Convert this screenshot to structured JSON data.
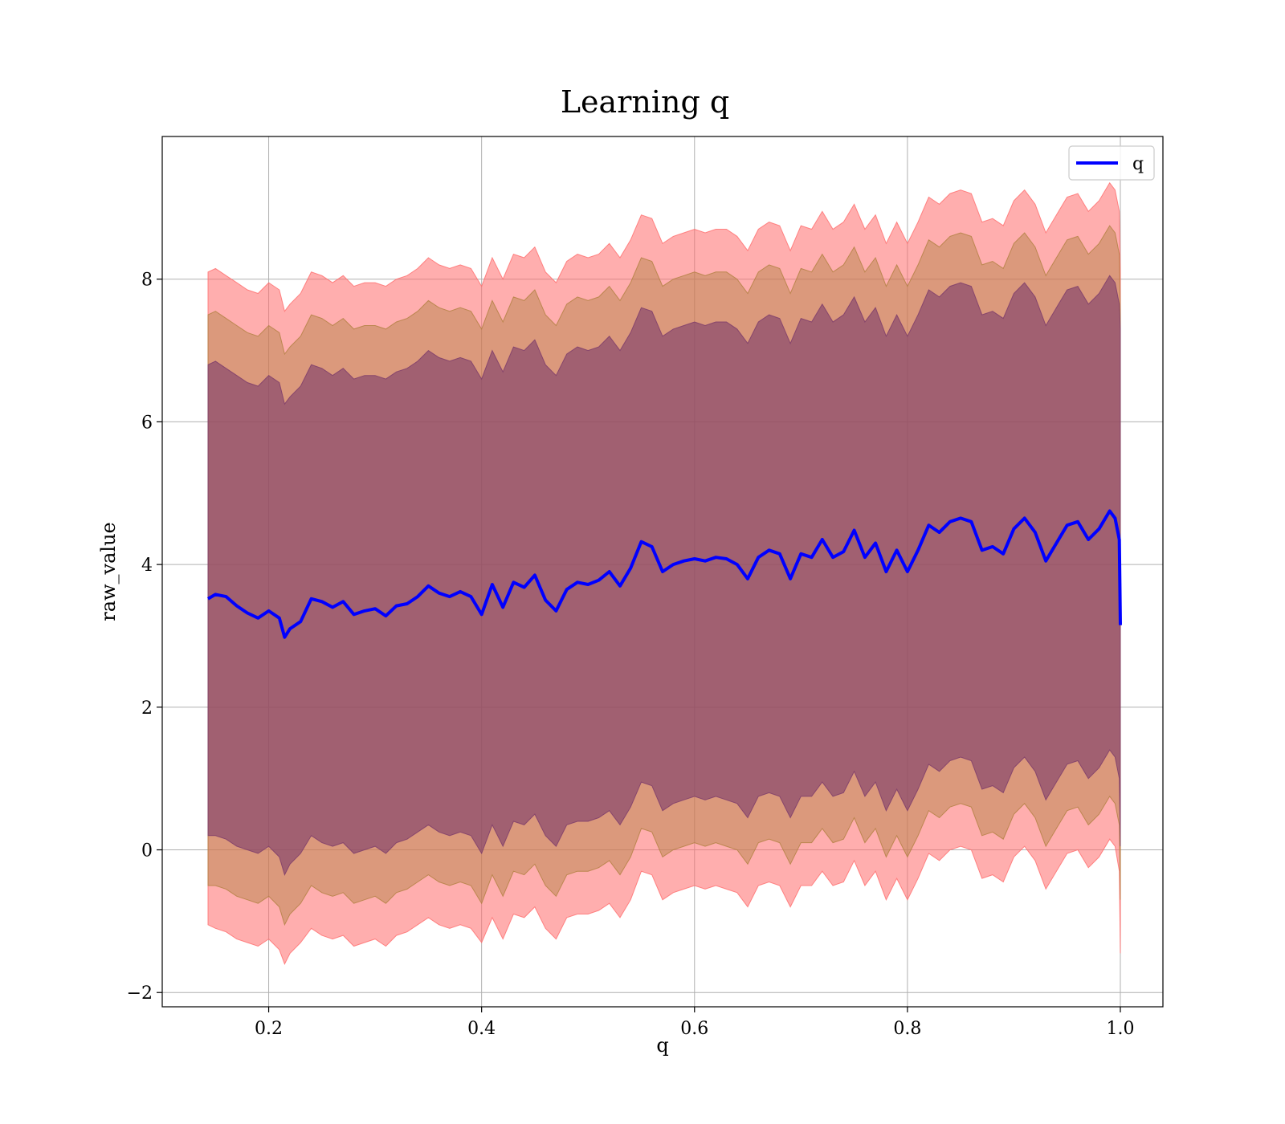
{
  "chart_data": {
    "type": "line",
    "title": "Learning q",
    "xlabel": "q",
    "ylabel": "raw_value",
    "xlim": [
      0.1,
      1.04
    ],
    "ylim": [
      -2.2,
      10.0
    ],
    "xticks": [
      0.2,
      0.4,
      0.6,
      0.8,
      1.0
    ],
    "xtick_labels": [
      "0.2",
      "0.4",
      "0.6",
      "0.8",
      "1.0"
    ],
    "yticks": [
      -2,
      0,
      2,
      4,
      6,
      8
    ],
    "ytick_labels": [
      "−2",
      "0",
      "2",
      "4",
      "6",
      "8"
    ],
    "grid": true,
    "legend": {
      "position": "top-right",
      "entries": [
        "q"
      ]
    },
    "series": [
      {
        "name": "q",
        "color": "#0000ff",
        "x": [
          0.143,
          0.15,
          0.16,
          0.17,
          0.18,
          0.19,
          0.2,
          0.21,
          0.215,
          0.22,
          0.23,
          0.24,
          0.25,
          0.26,
          0.27,
          0.28,
          0.29,
          0.3,
          0.31,
          0.32,
          0.33,
          0.34,
          0.35,
          0.36,
          0.37,
          0.38,
          0.39,
          0.4,
          0.41,
          0.42,
          0.43,
          0.44,
          0.45,
          0.46,
          0.47,
          0.48,
          0.49,
          0.5,
          0.51,
          0.52,
          0.53,
          0.54,
          0.55,
          0.56,
          0.57,
          0.58,
          0.59,
          0.6,
          0.61,
          0.62,
          0.63,
          0.64,
          0.65,
          0.66,
          0.67,
          0.68,
          0.69,
          0.7,
          0.71,
          0.72,
          0.73,
          0.74,
          0.75,
          0.76,
          0.77,
          0.78,
          0.79,
          0.8,
          0.81,
          0.82,
          0.83,
          0.84,
          0.85,
          0.86,
          0.87,
          0.88,
          0.89,
          0.9,
          0.91,
          0.92,
          0.93,
          0.94,
          0.95,
          0.96,
          0.97,
          0.98,
          0.99,
          0.995,
          0.999,
          1.0
        ],
        "values": [
          3.52,
          3.58,
          3.55,
          3.42,
          3.32,
          3.25,
          3.35,
          3.25,
          2.98,
          3.1,
          3.2,
          3.52,
          3.48,
          3.4,
          3.48,
          3.3,
          3.35,
          3.38,
          3.28,
          3.42,
          3.45,
          3.55,
          3.7,
          3.6,
          3.55,
          3.62,
          3.55,
          3.3,
          3.72,
          3.4,
          3.75,
          3.68,
          3.85,
          3.5,
          3.35,
          3.65,
          3.75,
          3.72,
          3.78,
          3.9,
          3.7,
          3.95,
          4.32,
          4.25,
          3.9,
          4.0,
          4.05,
          4.08,
          4.05,
          4.1,
          4.08,
          4.0,
          3.8,
          4.1,
          4.2,
          4.15,
          3.8,
          4.15,
          4.1,
          4.35,
          4.1,
          4.18,
          4.48,
          4.1,
          4.3,
          3.9,
          4.2,
          3.9,
          4.2,
          4.55,
          4.45,
          4.6,
          4.65,
          4.6,
          4.2,
          4.25,
          4.15,
          4.5,
          4.65,
          4.45,
          4.05,
          4.3,
          4.55,
          4.6,
          4.35,
          4.5,
          4.75,
          4.65,
          4.35,
          3.15
        ]
      }
    ],
    "bands": [
      {
        "color": "#ff6b6b",
        "opacity": 0.55,
        "lower": [
          -1.05,
          -1.1,
          -1.15,
          -1.25,
          -1.3,
          -1.35,
          -1.25,
          -1.4,
          -1.6,
          -1.45,
          -1.3,
          -1.1,
          -1.2,
          -1.25,
          -1.2,
          -1.35,
          -1.3,
          -1.25,
          -1.35,
          -1.2,
          -1.15,
          -1.05,
          -0.95,
          -1.05,
          -1.1,
          -1.05,
          -1.1,
          -1.3,
          -0.95,
          -1.25,
          -0.9,
          -0.95,
          -0.8,
          -1.1,
          -1.25,
          -0.95,
          -0.9,
          -0.9,
          -0.85,
          -0.75,
          -0.95,
          -0.7,
          -0.3,
          -0.35,
          -0.7,
          -0.6,
          -0.55,
          -0.5,
          -0.55,
          -0.5,
          -0.55,
          -0.6,
          -0.8,
          -0.5,
          -0.45,
          -0.5,
          -0.8,
          -0.5,
          -0.5,
          -0.3,
          -0.5,
          -0.45,
          -0.15,
          -0.5,
          -0.3,
          -0.7,
          -0.4,
          -0.7,
          -0.4,
          -0.05,
          -0.15,
          0.0,
          0.05,
          0.0,
          -0.4,
          -0.35,
          -0.45,
          -0.1,
          0.05,
          -0.15,
          -0.55,
          -0.3,
          -0.05,
          0.0,
          -0.25,
          -0.1,
          0.15,
          0.05,
          -0.3,
          -1.45
        ],
        "upper": [
          8.1,
          8.15,
          8.05,
          7.95,
          7.85,
          7.8,
          7.95,
          7.85,
          7.55,
          7.65,
          7.8,
          8.1,
          8.05,
          7.95,
          8.05,
          7.9,
          7.95,
          7.95,
          7.9,
          8.0,
          8.05,
          8.15,
          8.3,
          8.2,
          8.15,
          8.2,
          8.15,
          7.9,
          8.3,
          8.0,
          8.35,
          8.3,
          8.45,
          8.1,
          7.95,
          8.25,
          8.35,
          8.3,
          8.35,
          8.5,
          8.3,
          8.55,
          8.9,
          8.85,
          8.5,
          8.6,
          8.65,
          8.7,
          8.65,
          8.7,
          8.7,
          8.6,
          8.4,
          8.7,
          8.8,
          8.75,
          8.4,
          8.75,
          8.7,
          8.95,
          8.7,
          8.8,
          9.05,
          8.7,
          8.9,
          8.5,
          8.8,
          8.5,
          8.8,
          9.15,
          9.05,
          9.2,
          9.25,
          9.2,
          8.8,
          8.85,
          8.75,
          9.1,
          9.25,
          9.05,
          8.65,
          8.9,
          9.15,
          9.2,
          8.95,
          9.1,
          9.35,
          9.25,
          8.95,
          8.1
        ]
      },
      {
        "color": "#b08040",
        "opacity": 0.45,
        "lower": [
          -0.5,
          -0.5,
          -0.55,
          -0.65,
          -0.7,
          -0.75,
          -0.65,
          -0.8,
          -1.05,
          -0.9,
          -0.75,
          -0.5,
          -0.6,
          -0.65,
          -0.6,
          -0.75,
          -0.7,
          -0.65,
          -0.75,
          -0.6,
          -0.55,
          -0.45,
          -0.35,
          -0.45,
          -0.5,
          -0.45,
          -0.5,
          -0.75,
          -0.35,
          -0.65,
          -0.3,
          -0.35,
          -0.2,
          -0.5,
          -0.65,
          -0.35,
          -0.3,
          -0.3,
          -0.25,
          -0.15,
          -0.35,
          -0.1,
          0.3,
          0.25,
          -0.1,
          0.0,
          0.05,
          0.1,
          0.05,
          0.1,
          0.05,
          0.0,
          -0.2,
          0.1,
          0.15,
          0.1,
          -0.2,
          0.1,
          0.1,
          0.3,
          0.1,
          0.15,
          0.45,
          0.1,
          0.3,
          -0.1,
          0.2,
          -0.1,
          0.2,
          0.55,
          0.45,
          0.6,
          0.65,
          0.6,
          0.2,
          0.25,
          0.15,
          0.5,
          0.65,
          0.45,
          0.05,
          0.3,
          0.55,
          0.6,
          0.35,
          0.5,
          0.75,
          0.65,
          0.35,
          -0.7
        ],
        "upper": [
          7.5,
          7.55,
          7.45,
          7.35,
          7.25,
          7.2,
          7.35,
          7.25,
          6.95,
          7.05,
          7.2,
          7.5,
          7.45,
          7.35,
          7.45,
          7.3,
          7.35,
          7.35,
          7.3,
          7.4,
          7.45,
          7.55,
          7.7,
          7.6,
          7.55,
          7.6,
          7.55,
          7.3,
          7.7,
          7.4,
          7.75,
          7.7,
          7.85,
          7.5,
          7.35,
          7.65,
          7.75,
          7.7,
          7.75,
          7.9,
          7.7,
          7.95,
          8.3,
          8.25,
          7.9,
          8.0,
          8.05,
          8.1,
          8.05,
          8.1,
          8.1,
          8.0,
          7.8,
          8.1,
          8.2,
          8.15,
          7.8,
          8.15,
          8.1,
          8.35,
          8.1,
          8.2,
          8.45,
          8.1,
          8.3,
          7.9,
          8.2,
          7.9,
          8.2,
          8.55,
          8.45,
          8.6,
          8.65,
          8.6,
          8.2,
          8.25,
          8.15,
          8.5,
          8.65,
          8.45,
          8.05,
          8.3,
          8.55,
          8.6,
          8.35,
          8.5,
          8.75,
          8.65,
          8.35,
          7.5
        ]
      },
      {
        "color": "#7a3a6a",
        "opacity": 0.6,
        "lower": [
          0.2,
          0.2,
          0.15,
          0.05,
          0.0,
          -0.05,
          0.05,
          -0.1,
          -0.35,
          -0.2,
          -0.05,
          0.2,
          0.1,
          0.05,
          0.1,
          -0.05,
          0.0,
          0.05,
          -0.05,
          0.1,
          0.15,
          0.25,
          0.35,
          0.25,
          0.2,
          0.25,
          0.2,
          -0.05,
          0.35,
          0.05,
          0.4,
          0.35,
          0.5,
          0.2,
          0.05,
          0.35,
          0.4,
          0.4,
          0.45,
          0.55,
          0.35,
          0.6,
          0.95,
          0.9,
          0.55,
          0.65,
          0.7,
          0.75,
          0.7,
          0.75,
          0.7,
          0.65,
          0.45,
          0.75,
          0.8,
          0.75,
          0.45,
          0.75,
          0.75,
          0.95,
          0.75,
          0.8,
          1.1,
          0.75,
          0.95,
          0.55,
          0.85,
          0.55,
          0.85,
          1.2,
          1.1,
          1.25,
          1.3,
          1.25,
          0.85,
          0.9,
          0.8,
          1.15,
          1.3,
          1.1,
          0.7,
          0.95,
          1.2,
          1.25,
          1.0,
          1.15,
          1.4,
          1.3,
          1.0,
          0.05
        ],
        "upper": [
          6.8,
          6.85,
          6.75,
          6.65,
          6.55,
          6.5,
          6.65,
          6.55,
          6.25,
          6.35,
          6.5,
          6.8,
          6.75,
          6.65,
          6.75,
          6.6,
          6.65,
          6.65,
          6.6,
          6.7,
          6.75,
          6.85,
          7.0,
          6.9,
          6.85,
          6.9,
          6.85,
          6.6,
          7.0,
          6.7,
          7.05,
          7.0,
          7.15,
          6.8,
          6.65,
          6.95,
          7.05,
          7.0,
          7.05,
          7.2,
          7.0,
          7.25,
          7.6,
          7.55,
          7.2,
          7.3,
          7.35,
          7.4,
          7.35,
          7.4,
          7.4,
          7.3,
          7.1,
          7.4,
          7.5,
          7.45,
          7.1,
          7.45,
          7.4,
          7.65,
          7.4,
          7.5,
          7.75,
          7.4,
          7.6,
          7.2,
          7.5,
          7.2,
          7.5,
          7.85,
          7.75,
          7.9,
          7.95,
          7.9,
          7.5,
          7.55,
          7.45,
          7.8,
          7.95,
          7.75,
          7.35,
          7.6,
          7.85,
          7.9,
          7.65,
          7.8,
          8.05,
          7.95,
          7.65,
          7.3
        ]
      }
    ]
  }
}
